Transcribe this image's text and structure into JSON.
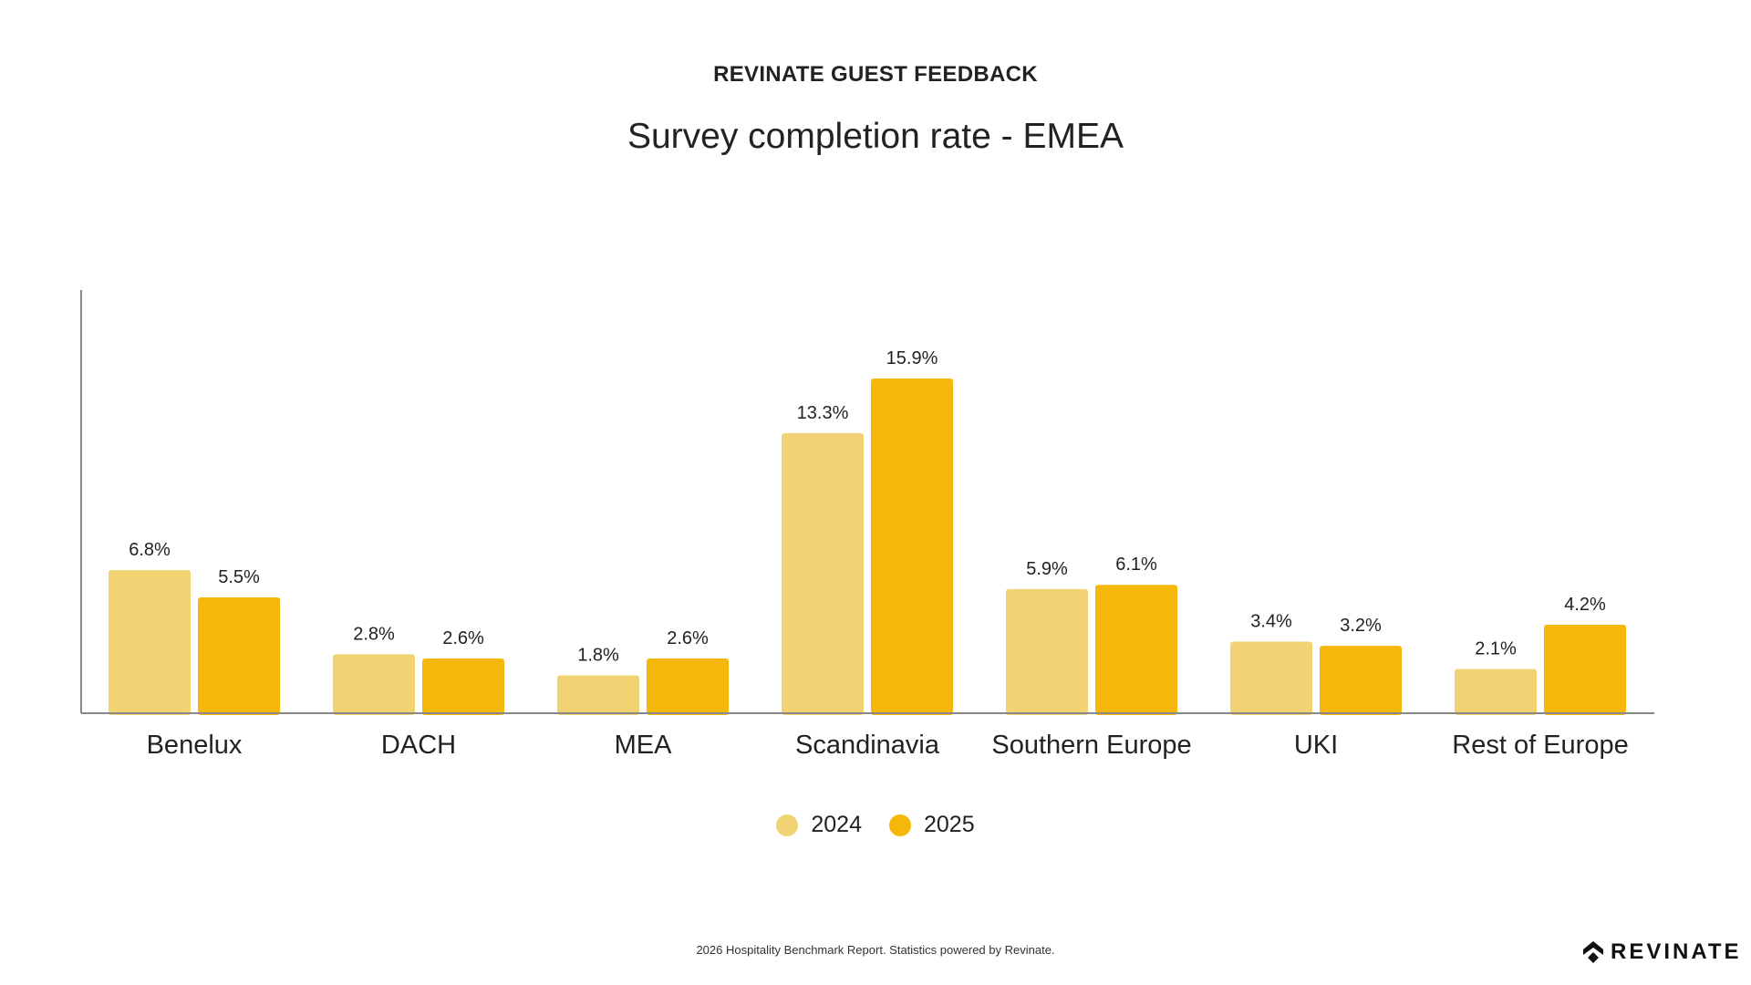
{
  "header": {
    "kicker": "REVINATE GUEST FEEDBACK",
    "title": "Survey completion rate - EMEA"
  },
  "footer": {
    "text": "2026 Hospitality Benchmark Report. Statistics powered by Revinate.",
    "logo": "REVINATE"
  },
  "colors": {
    "2024": "#F2D374",
    "2025": "#F5B80A",
    "axis": "#888888"
  },
  "chart_data": {
    "type": "bar",
    "title": "Survey completion rate - EMEA",
    "xlabel": "",
    "ylabel": "",
    "ylim": [
      0,
      16.5
    ],
    "grid": false,
    "legend_position": "bottom-center",
    "categories": [
      "Benelux",
      "DACH",
      "MEA",
      "Scandinavia",
      "Southern Europe",
      "UKI",
      "Rest of Europe"
    ],
    "series": [
      {
        "name": "2024",
        "values": [
          6.8,
          2.8,
          1.8,
          13.3,
          5.9,
          3.4,
          2.1
        ],
        "labels": [
          "6.8%",
          "2.8%",
          "1.8%",
          "13.3%",
          "5.9%",
          "3.4%",
          "2.1%"
        ]
      },
      {
        "name": "2025",
        "values": [
          5.5,
          2.6,
          2.6,
          15.9,
          6.1,
          3.2,
          4.2
        ],
        "labels": [
          "5.5%",
          "2.6%",
          "2.6%",
          "15.9%",
          "6.1%",
          "3.2%",
          "4.2%"
        ]
      }
    ]
  }
}
